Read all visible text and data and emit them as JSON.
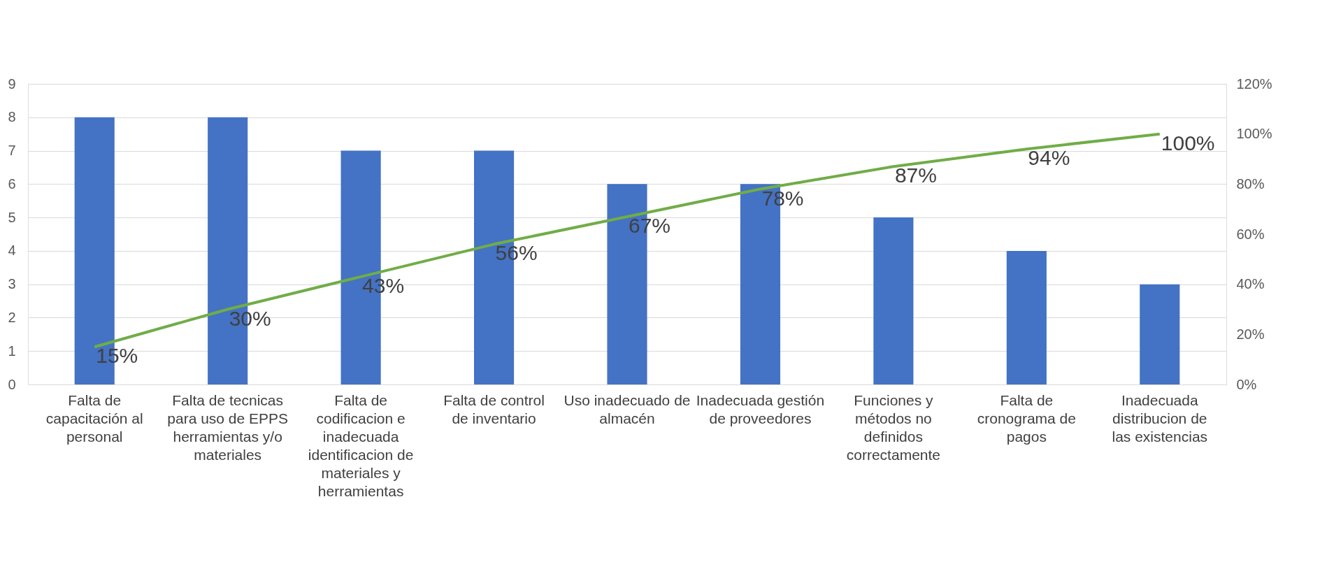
{
  "chart_data": {
    "type": "bar",
    "categories": [
      "Falta de capacitación al personal",
      "Falta de tecnicas para uso de EPPS herramientas y/o materiales",
      "Falta de codificacion e inadecuada identificacion de materiales y herramientas",
      "Falta de control de inventario",
      "Uso inadecuado de almacén",
      "Inadecuada gestión de proveedores",
      "Funciones y métodos no definidos correctamente",
      "Falta de cronograma de pagos",
      "Inadecuada distribucion de las existencias"
    ],
    "series": [
      {
        "color": "#4472c4",
        "values": [
          8,
          8,
          7,
          7,
          6,
          6,
          5,
          4,
          3
        ]
      },
      {
        "type": "line",
        "axis": "y2",
        "color": "#70ad47",
        "values": [
          15,
          30,
          43,
          56,
          67,
          78,
          87,
          94,
          100
        ],
        "value_labels": [
          "15%",
          "30%",
          "43%",
          "56%",
          "67%",
          "78%",
          "87%",
          "94%",
          "100%"
        ]
      }
    ],
    "ylim": [
      0,
      9
    ],
    "yticks": [
      0,
      1,
      2,
      3,
      4,
      5,
      6,
      7,
      8,
      9
    ],
    "y2lim": [
      0,
      120
    ],
    "y2ticks": [
      {
        "value": 0,
        "label": "0%"
      },
      {
        "value": 20,
        "label": "20%"
      },
      {
        "value": 40,
        "label": "40%"
      },
      {
        "value": 60,
        "label": "60%"
      },
      {
        "value": 80,
        "label": "80%"
      },
      {
        "value": 100,
        "label": "100%"
      },
      {
        "value": 120,
        "label": "120%"
      }
    ],
    "grid": "y",
    "marker": "none",
    "line_style": "solid"
  }
}
